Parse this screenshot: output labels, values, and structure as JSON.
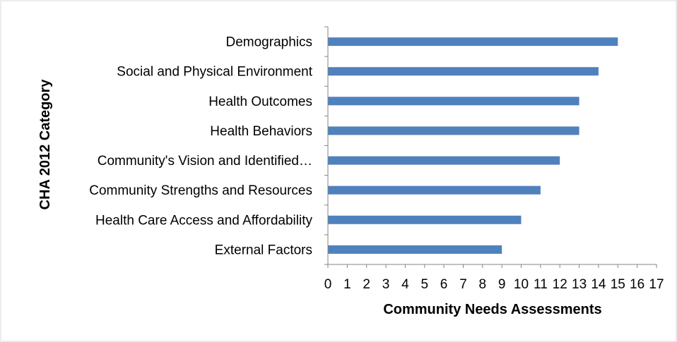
{
  "chart_data": {
    "type": "bar",
    "orientation": "horizontal",
    "categories": [
      "Demographics",
      "Social and Physical Environment",
      "Health Outcomes",
      "Health Behaviors",
      "Community's Vision and Identified…",
      "Community Strengths and Resources",
      "Health Care Access and Affordability",
      "External Factors"
    ],
    "values": [
      15,
      14,
      13,
      13,
      12,
      11,
      10,
      9
    ],
    "xlabel": "Community Needs Assessments",
    "ylabel": "CHA 2012 Category",
    "xlim": [
      0,
      17
    ],
    "xticks": [
      "0",
      "1",
      "2",
      "3",
      "4",
      "5",
      "6",
      "7",
      "8",
      "9",
      "10",
      "11",
      "12",
      "13",
      "14",
      "15",
      "16",
      "17"
    ],
    "grid": false,
    "legend": "none",
    "bar_color": "#4F81BD",
    "axis_color": "#868686",
    "border_color": "#D9D9D9"
  }
}
